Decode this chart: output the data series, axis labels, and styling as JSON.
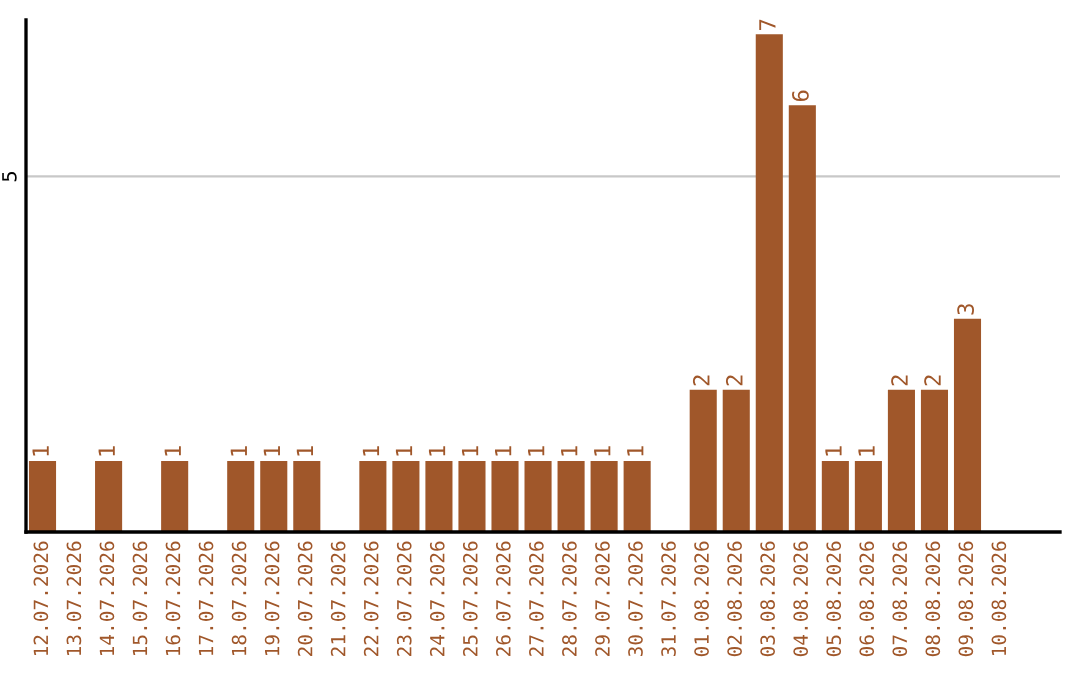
{
  "chart_data": {
    "type": "bar",
    "categories": [
      "12.07.2026",
      "13.07.2026",
      "14.07.2026",
      "15.07.2026",
      "16.07.2026",
      "17.07.2026",
      "18.07.2026",
      "19.07.2026",
      "20.07.2026",
      "21.07.2026",
      "22.07.2026",
      "23.07.2026",
      "24.07.2026",
      "25.07.2026",
      "26.07.2026",
      "27.07.2026",
      "28.07.2026",
      "29.07.2026",
      "30.07.2026",
      "31.07.2026",
      "01.08.2026",
      "02.08.2026",
      "03.08.2026",
      "04.08.2026",
      "05.08.2026",
      "06.08.2026",
      "07.08.2026",
      "08.08.2026",
      "09.08.2026",
      "10.08.2026"
    ],
    "values": [
      1,
      0,
      1,
      0,
      1,
      0,
      1,
      1,
      1,
      0,
      1,
      1,
      1,
      1,
      1,
      1,
      1,
      1,
      1,
      0,
      2,
      2,
      7,
      6,
      1,
      1,
      2,
      2,
      3,
      0
    ],
    "value_labels": [
      "1",
      null,
      "1",
      null,
      "1",
      null,
      "1",
      "1",
      "1",
      null,
      "1",
      "1",
      "1",
      "1",
      "1",
      "1",
      "1",
      "1",
      "1",
      null,
      "2",
      "2",
      "7",
      "6",
      "1",
      "1",
      "2",
      "2",
      "3",
      null
    ],
    "color": "#a0572a",
    "ylim": [
      0,
      7.2
    ],
    "yticks": [
      5
    ],
    "grid": "y",
    "legend": false
  }
}
